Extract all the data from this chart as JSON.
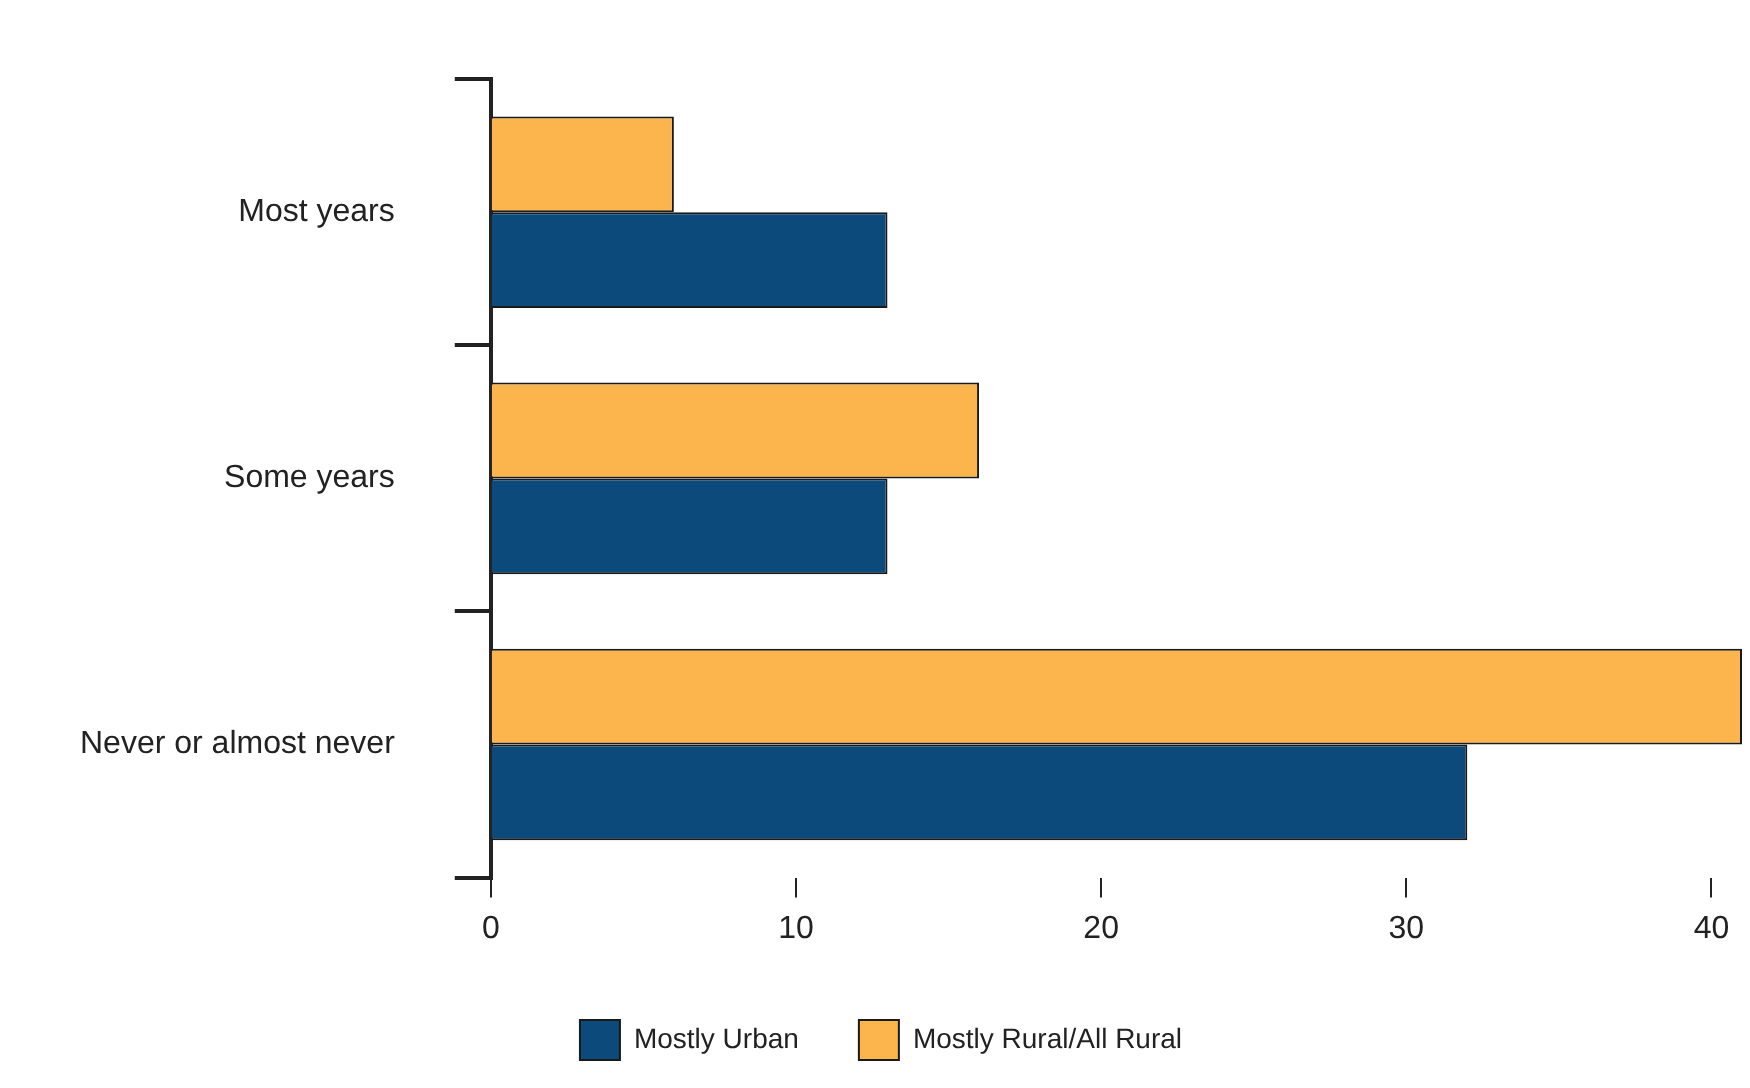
{
  "chart_data": {
    "type": "bar",
    "orientation": "horizontal",
    "categories": [
      "Most years",
      "Some years",
      "Never or almost never"
    ],
    "series": [
      {
        "name": "Mostly Urban",
        "color": "#0b4a7b",
        "values": [
          13,
          13,
          32
        ]
      },
      {
        "name": "Mostly Rural/All Rural",
        "color": "#fbb54c",
        "values": [
          6,
          16,
          41
        ]
      }
    ],
    "xlim": [
      0,
      41
    ],
    "xticks": [
      0,
      10,
      20,
      30,
      40
    ],
    "legend": "bottom"
  }
}
